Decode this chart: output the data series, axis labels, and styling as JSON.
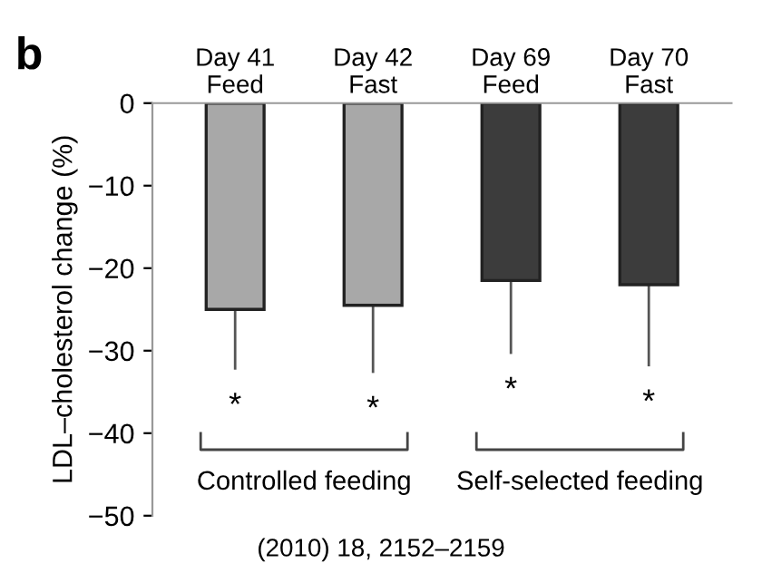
{
  "chart_data": {
    "type": "bar",
    "title": "b",
    "ylabel": "LDL–cholesterol change (%)",
    "categories": [
      "Day 41\nFeed",
      "Day 42\nFast",
      "Day 69\nFeed",
      "Day 70\nFast"
    ],
    "values": [
      -25,
      -24.5,
      -21.5,
      -22
    ],
    "colors": [
      "#a8a8a8",
      "#a8a8a8",
      "#3c3c3c",
      "#3c3c3c"
    ],
    "errors": [
      [
        -32.3,
        -25
      ],
      [
        -32.7,
        -24.5
      ],
      [
        -30.4,
        -21.5
      ],
      [
        -31.9,
        -22
      ]
    ],
    "ylim": [
      -50,
      0
    ],
    "yticks": [
      0,
      {
        "value": -10,
        "label": "−10"
      },
      {
        "value": -20,
        "label": "−20"
      },
      {
        "value": -30,
        "label": "−30"
      },
      {
        "value": -40,
        "label": "−40"
      },
      {
        "value": -50,
        "label": "−50"
      }
    ],
    "annotations": [
      "*",
      "*",
      "*",
      "*",
      "Controlled feeding",
      "Self-selected feeding",
      "(2010) 18, 2152–2159"
    ],
    "grid": false,
    "legend": false
  }
}
